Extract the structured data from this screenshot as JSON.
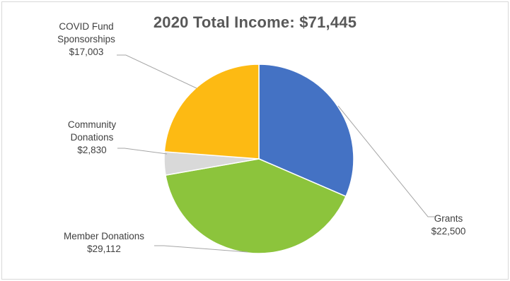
{
  "chart_data": {
    "type": "pie",
    "title": "2020 Total Income: $71,445",
    "slices": [
      {
        "label_lines": [
          "Grants"
        ],
        "value_text": "$22,500",
        "value": 22500,
        "color": "#4472C4"
      },
      {
        "label_lines": [
          "Member Donations"
        ],
        "value_text": "$29,112",
        "value": 29112,
        "color": "#8CC43C"
      },
      {
        "label_lines": [
          "Community",
          "Donations"
        ],
        "value_text": "$2,830",
        "value": 2830,
        "color": "#D9D9D9"
      },
      {
        "label_lines": [
          "COVID Fund",
          "Sponsorships"
        ],
        "value_text": "$17,003",
        "value": 17003,
        "color": "#FDBA13"
      }
    ],
    "start_angle_deg": 0,
    "direction": "clockwise",
    "leader_line_color": "#A6A6A6"
  }
}
